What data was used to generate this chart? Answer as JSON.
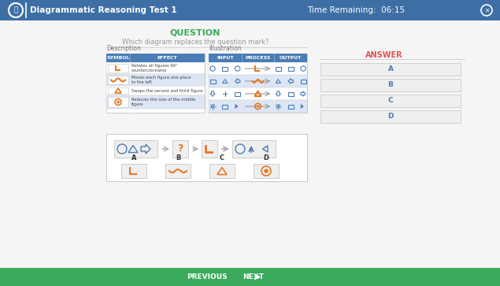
{
  "title": "Diagrammatic Reasoning Test 1",
  "time_label": "Time Remaining:  06:15",
  "header_bg": "#3d6fa5",
  "header_text_color": "#ffffff",
  "footer_bg": "#3aaa5c",
  "footer_text_color": "#ffffff",
  "body_bg": "#f5f5f5",
  "question_text": "QUESTION",
  "question_color": "#3aaa5c",
  "subquestion_text": "Which diagram replaces the question mark?",
  "subquestion_color": "#999999",
  "answer_label": "ANSWER",
  "answer_color": "#e05555",
  "symbol_col": "SYMBOL",
  "effect_col": "EFFECT",
  "input_col": "INPUT",
  "process_col": "PROCESS",
  "output_col": "OUTPUT",
  "illustration_label": "Illustration",
  "description_label": "Description",
  "effects": [
    "Rotates all figures 90°\ncounterclockwise",
    "Moves each figure one place\nto the left",
    "Swaps the second and third figure",
    "Reduces the size of the middle\nfigure"
  ],
  "answer_options": [
    "A",
    "B",
    "C",
    "D"
  ],
  "prev_text": "PREVIOUS",
  "next_text": "NEXT",
  "blue": "#4a7db5",
  "orange": "#e87722",
  "light_gray": "#efefef",
  "medium_gray": "#cccccc",
  "dark_gray": "#777777",
  "border_gray": "#cccccc",
  "row_alt": "#dce6f5",
  "white": "#ffffff"
}
